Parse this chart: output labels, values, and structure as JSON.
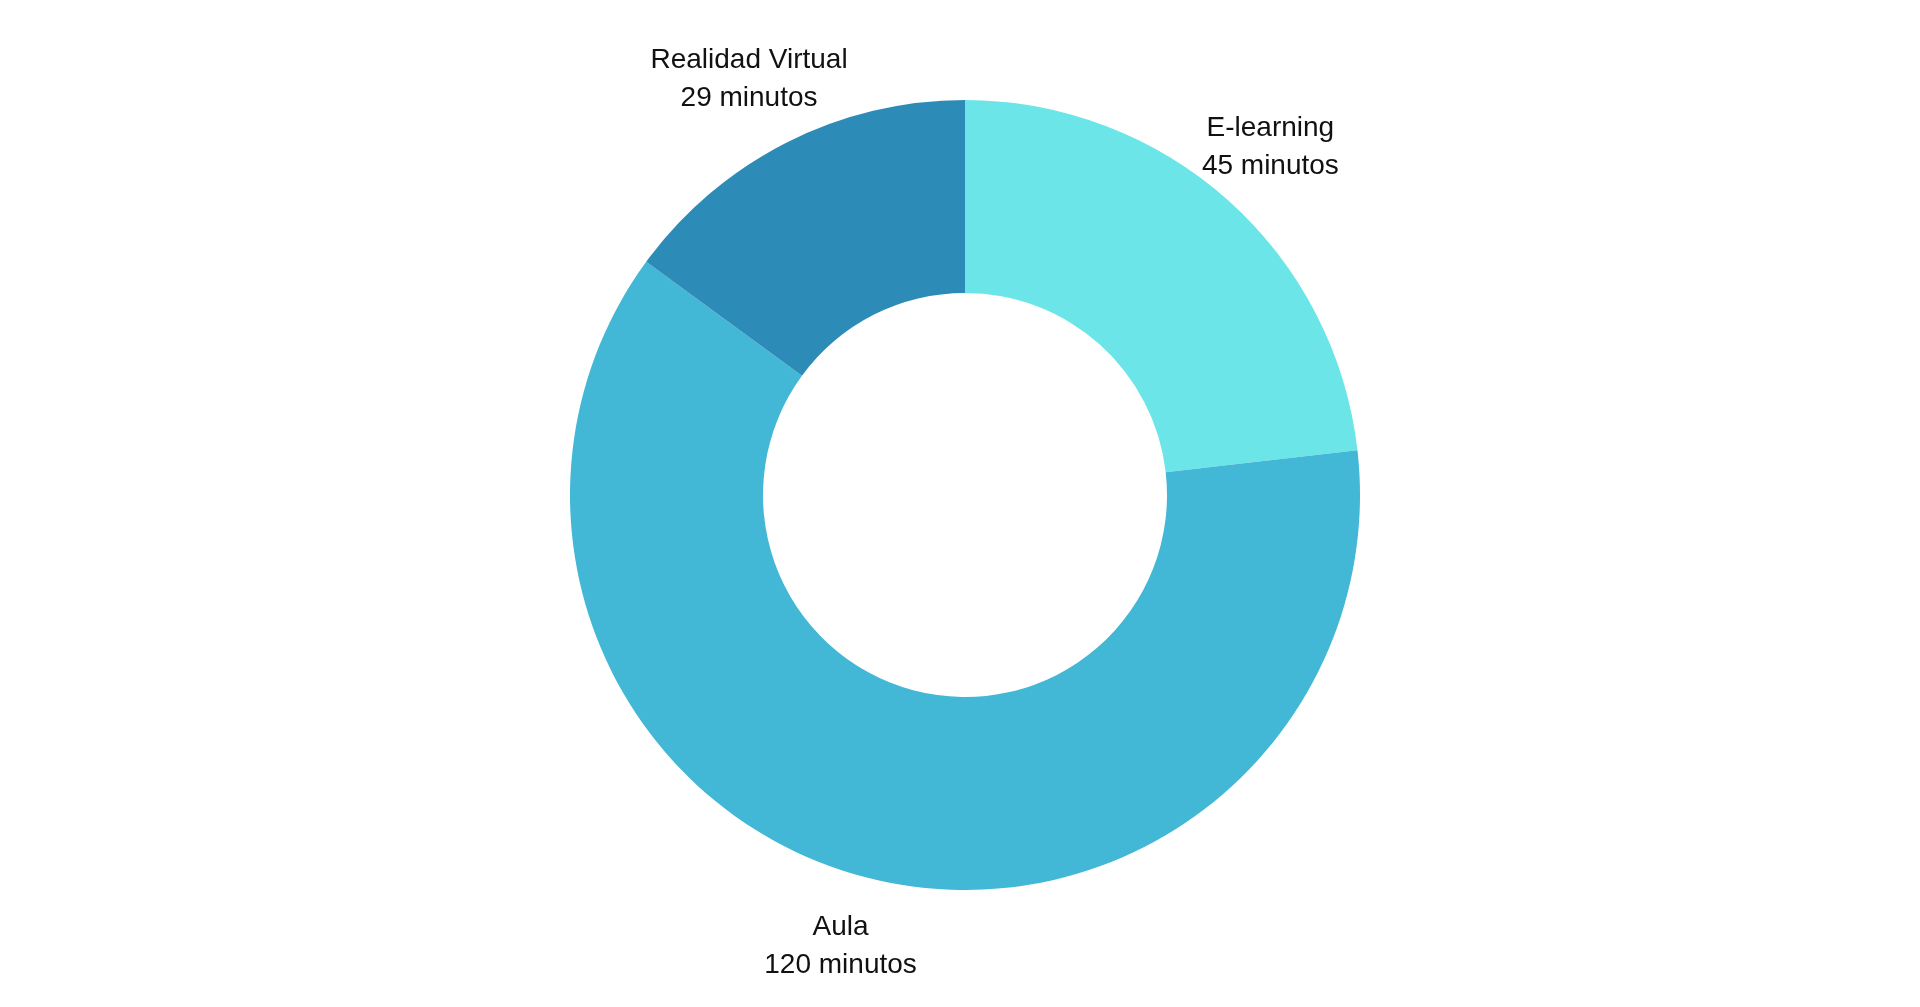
{
  "chart_data": {
    "type": "donut",
    "categories": [
      "E-learning",
      "Aula",
      "Realidad Virtual"
    ],
    "values": [
      45,
      120,
      29
    ],
    "colors": [
      "#6ce5e8",
      "#42b7d6",
      "#2d8bb8"
    ],
    "value_labels": [
      "45 minutos",
      "120 minutos",
      "29 minutos"
    ]
  }
}
